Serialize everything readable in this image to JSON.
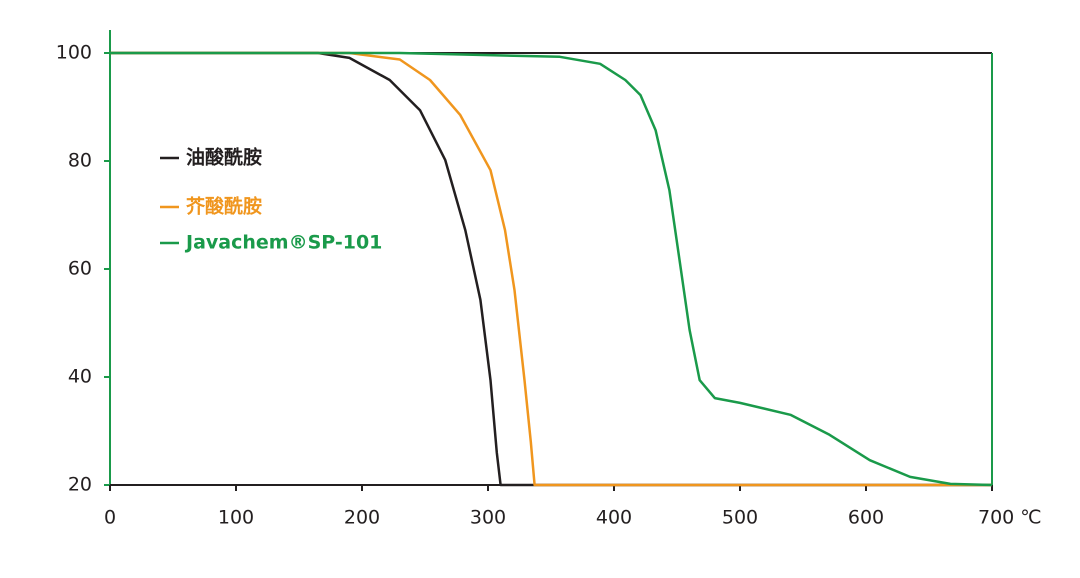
{
  "chart_data": {
    "type": "line",
    "xlim": [
      0,
      700
    ],
    "ylim": [
      20,
      100
    ],
    "xticks": [
      0,
      100,
      200,
      300,
      400,
      500,
      600,
      {
        "value": 700,
        "label": "700 ℃"
      }
    ],
    "yticks": [
      20,
      40,
      60,
      80,
      100
    ],
    "series": [
      {
        "name": "油酸酰胺",
        "color": "#231f20",
        "x": [
          0,
          165,
          190,
          222,
          246,
          266,
          282,
          294,
          302,
          307,
          310,
          700
        ],
        "values": [
          100,
          100,
          99.1,
          95,
          89.4,
          80.2,
          67.2,
          54.3,
          39.4,
          26,
          20,
          20
        ]
      },
      {
        "name": "芥酸酰胺",
        "color": "#f0961e",
        "x": [
          0,
          190,
          230,
          254,
          278,
          302,
          313.5,
          321,
          329,
          334,
          337,
          700
        ],
        "values": [
          100,
          100,
          98.8,
          95,
          88.5,
          78.3,
          67.2,
          56.1,
          39.4,
          28,
          20,
          20
        ]
      },
      {
        "name": "Javachem®SP-101",
        "color": "#1a9a4a",
        "x": [
          0,
          230,
          357,
          389,
          409,
          421,
          433,
          444,
          452,
          460,
          468,
          480,
          500,
          540,
          571,
          603,
          635,
          667,
          700
        ],
        "values": [
          100,
          100,
          99.3,
          98,
          95,
          92.2,
          85.7,
          74.6,
          61.7,
          48.7,
          39.4,
          36.1,
          35.2,
          33,
          29.3,
          24.6,
          21.5,
          20.2,
          20
        ]
      }
    ]
  }
}
